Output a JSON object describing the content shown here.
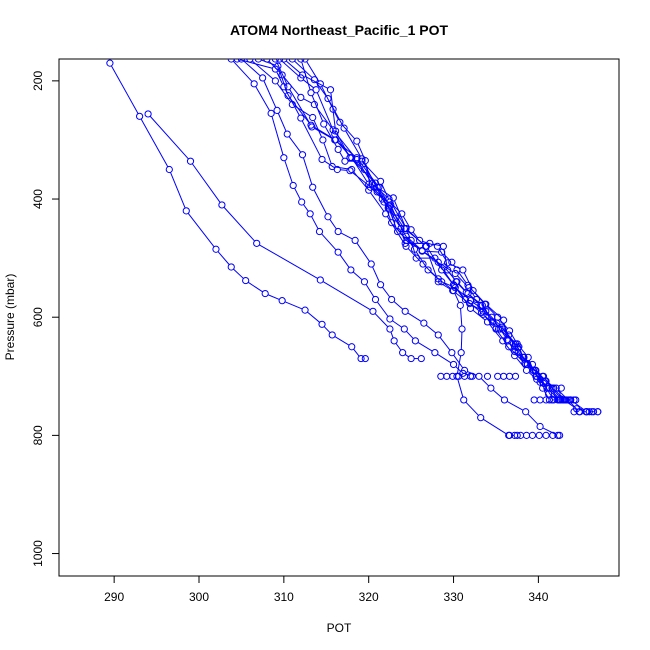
{
  "chart_data": {
    "type": "line",
    "title": "ATOM4 Northeast_Pacific_1 POT",
    "xlabel": "POT",
    "ylabel": "Pressure (mbar)",
    "xlim": [
      283.5,
      349.5
    ],
    "ylim": [
      1038,
      163
    ],
    "y_reversed": true,
    "grid": false,
    "legend": "none",
    "x_ticks": [
      290,
      300,
      310,
      320,
      330,
      340
    ],
    "y_ticks": [
      200,
      400,
      600,
      800,
      1000
    ],
    "color": "#0000ff",
    "marker": "open-circle",
    "series": [
      {
        "points": [
          [
            289.5,
            170
          ],
          [
            293,
            260
          ],
          [
            296.5,
            350
          ],
          [
            298.5,
            420
          ],
          [
            302,
            485
          ],
          [
            303.8,
            515
          ],
          [
            305.5,
            538
          ],
          [
            307.8,
            560
          ],
          [
            309.8,
            572
          ],
          [
            312.5,
            588
          ],
          [
            314.5,
            612
          ],
          [
            315.7,
            630
          ],
          [
            318,
            650
          ],
          [
            319.1,
            670
          ],
          [
            319.6,
            670
          ]
        ]
      },
      {
        "points": [
          [
            294,
            256
          ],
          [
            299,
            336
          ],
          [
            302.7,
            410
          ],
          [
            306.8,
            475
          ],
          [
            314.3,
            537
          ],
          [
            320.5,
            590
          ],
          [
            322.5,
            620
          ],
          [
            323,
            640
          ],
          [
            324,
            660
          ],
          [
            325,
            670
          ],
          [
            326.2,
            670
          ]
        ]
      },
      {
        "points": [
          [
            303.8,
            163
          ],
          [
            306.5,
            205
          ],
          [
            308.5,
            255
          ],
          [
            310,
            330
          ],
          [
            311.1,
            377
          ],
          [
            312.1,
            405
          ],
          [
            313.1,
            425
          ],
          [
            314.2,
            455
          ],
          [
            316.4,
            490
          ],
          [
            317.9,
            520
          ],
          [
            319.5,
            540
          ],
          [
            320.8,
            570
          ],
          [
            322.5,
            603
          ],
          [
            324.2,
            620
          ],
          [
            325.5,
            640
          ],
          [
            327.8,
            660
          ],
          [
            330,
            680
          ],
          [
            331.1,
            695
          ],
          [
            332.2,
            700
          ]
        ]
      },
      {
        "points": [
          [
            304.5,
            163
          ],
          [
            309,
            180
          ],
          [
            310,
            210
          ],
          [
            312,
            263
          ],
          [
            314.5,
            333
          ],
          [
            316.3,
            350
          ],
          [
            317.8,
            352
          ],
          [
            321,
            388
          ],
          [
            323.2,
            432
          ],
          [
            324.4,
            463
          ],
          [
            326.3,
            487
          ],
          [
            328.2,
            507
          ],
          [
            330.2,
            526
          ],
          [
            331.8,
            550
          ],
          [
            332.7,
            570
          ],
          [
            333.3,
            592
          ],
          [
            335,
            620
          ],
          [
            336.5,
            650
          ],
          [
            338.5,
            680
          ],
          [
            340.5,
            700
          ],
          [
            341.8,
            720
          ],
          [
            343,
            740
          ],
          [
            344.5,
            755
          ],
          [
            345.7,
            760
          ],
          [
            347,
            760
          ]
        ]
      },
      {
        "points": [
          [
            305,
            163
          ],
          [
            307.5,
            195
          ],
          [
            309.2,
            250
          ],
          [
            310.4,
            290
          ],
          [
            312.2,
            325
          ],
          [
            313.4,
            380
          ],
          [
            315.2,
            430
          ],
          [
            316.4,
            455
          ],
          [
            318.4,
            470
          ],
          [
            320.3,
            510
          ],
          [
            321.4,
            545
          ],
          [
            322.7,
            570
          ],
          [
            324.3,
            590
          ],
          [
            326.5,
            610
          ],
          [
            328.2,
            630
          ],
          [
            329.8,
            660
          ],
          [
            331.3,
            690
          ],
          [
            333,
            700
          ],
          [
            334.4,
            720
          ],
          [
            336,
            740
          ],
          [
            338.5,
            760
          ],
          [
            340.2,
            785
          ],
          [
            342.3,
            800
          ]
        ]
      },
      {
        "points": [
          [
            306,
            163
          ],
          [
            309,
            200
          ],
          [
            311,
            240
          ],
          [
            313.4,
            262
          ],
          [
            314.6,
            300
          ],
          [
            315.7,
            345
          ],
          [
            318,
            350
          ],
          [
            320,
            385
          ],
          [
            322,
            425
          ],
          [
            324.4,
            480
          ],
          [
            326.4,
            510
          ],
          [
            328.2,
            535
          ],
          [
            330,
            555
          ],
          [
            330.8,
            580
          ],
          [
            331,
            620
          ],
          [
            330.9,
            660
          ],
          [
            330.4,
            700
          ],
          [
            331.2,
            740
          ],
          [
            333.2,
            770
          ],
          [
            336.5,
            800
          ],
          [
            337.5,
            800
          ]
        ]
      },
      {
        "points": [
          [
            307,
            163
          ],
          [
            309.3,
            175
          ],
          [
            310.5,
            225
          ],
          [
            313.2,
            275
          ],
          [
            316.1,
            300
          ],
          [
            318,
            330
          ],
          [
            320,
            375
          ],
          [
            322.6,
            410
          ],
          [
            323.8,
            450
          ],
          [
            325.4,
            485
          ],
          [
            327,
            520
          ],
          [
            328.6,
            540
          ],
          [
            330.2,
            550
          ],
          [
            332,
            572
          ],
          [
            333.8,
            590
          ],
          [
            335.7,
            617
          ],
          [
            337.3,
            645
          ],
          [
            338.3,
            668
          ],
          [
            339.6,
            690
          ],
          [
            340.8,
            708
          ],
          [
            342.1,
            720
          ],
          [
            343.5,
            740
          ],
          [
            344.8,
            760
          ],
          [
            346,
            760
          ]
        ]
      },
      {
        "points": [
          [
            308,
            163
          ],
          [
            309.8,
            190
          ],
          [
            312,
            228
          ],
          [
            313.6,
            240
          ],
          [
            315.8,
            283
          ],
          [
            318.6,
            333
          ],
          [
            320.4,
            374
          ],
          [
            322.4,
            400
          ],
          [
            324.4,
            450
          ],
          [
            325,
            470
          ],
          [
            325.6,
            500
          ],
          [
            327.8,
            500
          ],
          [
            330,
            545
          ],
          [
            332,
            585
          ],
          [
            334,
            608
          ],
          [
            335.8,
            640
          ],
          [
            337.2,
            665
          ],
          [
            338.6,
            690
          ],
          [
            339.8,
            705
          ],
          [
            341.3,
            720
          ],
          [
            342.6,
            740
          ],
          [
            343.8,
            740
          ]
        ]
      },
      {
        "points": [
          [
            309,
            163
          ],
          [
            310.5,
            210
          ],
          [
            313.3,
            278
          ],
          [
            316,
            300
          ],
          [
            318.6,
            330
          ],
          [
            321.2,
            380
          ],
          [
            322.4,
            412
          ],
          [
            324.2,
            450
          ],
          [
            326.8,
            480
          ],
          [
            328.6,
            520
          ],
          [
            330.1,
            547
          ],
          [
            331.4,
            570
          ],
          [
            333.5,
            595
          ],
          [
            335.3,
            620
          ],
          [
            337.5,
            645
          ],
          [
            338.8,
            668
          ],
          [
            339.4,
            690
          ],
          [
            340.6,
            712
          ],
          [
            341.8,
            740
          ],
          [
            342.4,
            740
          ]
        ]
      },
      {
        "points": [
          [
            309.5,
            163
          ],
          [
            312,
            195
          ],
          [
            313.8,
            215
          ],
          [
            316,
            290
          ],
          [
            317.8,
            330
          ],
          [
            319.5,
            350
          ],
          [
            321,
            380
          ],
          [
            322.9,
            398
          ],
          [
            324.4,
            450
          ],
          [
            326.7,
            480
          ],
          [
            328.2,
            540
          ],
          [
            329.9,
            555
          ],
          [
            331.9,
            577
          ],
          [
            333.5,
            590
          ],
          [
            335.1,
            610
          ],
          [
            336.5,
            630
          ],
          [
            337.2,
            650
          ],
          [
            338.7,
            680
          ],
          [
            339.7,
            700
          ],
          [
            340.5,
            720
          ],
          [
            341.3,
            740
          ],
          [
            343.2,
            740
          ]
        ]
      },
      {
        "points": [
          [
            310,
            163
          ],
          [
            312.2,
            190
          ],
          [
            315.5,
            215
          ],
          [
            316.1,
            285
          ],
          [
            317.8,
            330
          ],
          [
            320.8,
            373
          ],
          [
            322.3,
            415
          ],
          [
            323.8,
            450
          ],
          [
            324.3,
            475
          ],
          [
            327.2,
            475
          ],
          [
            328.8,
            480
          ],
          [
            329.3,
            520
          ],
          [
            330.3,
            540
          ],
          [
            331.5,
            558
          ],
          [
            333.2,
            580
          ],
          [
            334.5,
            600
          ],
          [
            335.5,
            620
          ],
          [
            336.4,
            640
          ],
          [
            337.6,
            660
          ],
          [
            338.4,
            678
          ],
          [
            339.4,
            690
          ],
          [
            340.2,
            710
          ],
          [
            341.2,
            730
          ],
          [
            342.5,
            740
          ],
          [
            344.2,
            740
          ]
        ]
      },
      {
        "points": [
          [
            311,
            163
          ],
          [
            313.6,
            198
          ],
          [
            315.2,
            230
          ],
          [
            317.1,
            280
          ],
          [
            319.2,
            332
          ],
          [
            321.8,
            405
          ],
          [
            322.7,
            440
          ],
          [
            324.5,
            470
          ],
          [
            326.3,
            488
          ],
          [
            328.6,
            490
          ],
          [
            329.8,
            507
          ],
          [
            330.4,
            520
          ],
          [
            331.7,
            546
          ],
          [
            333.7,
            578
          ],
          [
            335.2,
            600
          ],
          [
            336.6,
            623
          ],
          [
            337.7,
            650
          ],
          [
            338.2,
            668
          ],
          [
            339.4,
            690
          ],
          [
            339.8,
            700
          ],
          [
            341,
            720
          ],
          [
            342.5,
            740
          ],
          [
            343.3,
            740
          ]
        ]
      },
      {
        "points": [
          [
            312,
            163
          ],
          [
            313.2,
            220
          ],
          [
            314.7,
            273
          ],
          [
            316.4,
            316
          ],
          [
            317.2,
            336
          ],
          [
            319.2,
            336
          ],
          [
            321.4,
            370
          ],
          [
            322.5,
            405
          ],
          [
            323.9,
            425
          ],
          [
            325,
            452
          ],
          [
            326,
            470
          ],
          [
            328.1,
            480
          ],
          [
            329.3,
            508
          ],
          [
            331.1,
            520
          ],
          [
            332.3,
            555
          ],
          [
            333.8,
            578
          ],
          [
            335.9,
            605
          ],
          [
            336.3,
            638
          ],
          [
            337.2,
            658
          ],
          [
            339.3,
            680
          ],
          [
            339.7,
            690
          ],
          [
            340.9,
            708
          ],
          [
            342.2,
            730
          ],
          [
            343.8,
            740
          ],
          [
            345.7,
            760
          ],
          [
            346.5,
            760
          ]
        ]
      },
      {
        "points": [
          [
            312.5,
            163
          ],
          [
            314.3,
            205
          ],
          [
            315.8,
            248
          ],
          [
            316.6,
            270
          ],
          [
            318.6,
            302
          ],
          [
            319.6,
            335
          ],
          [
            320.2,
            380
          ],
          [
            321.6,
            400
          ],
          [
            322.4,
            417
          ],
          [
            323.4,
            455
          ],
          [
            326.3,
            488
          ],
          [
            328.9,
            515
          ],
          [
            330.4,
            540
          ],
          [
            331.7,
            560
          ],
          [
            333.4,
            580
          ],
          [
            334.6,
            608
          ],
          [
            335.8,
            620
          ],
          [
            337.6,
            652
          ],
          [
            338.7,
            680
          ],
          [
            340.6,
            700
          ],
          [
            341.6,
            720
          ],
          [
            342.8,
            740
          ]
        ]
      }
    ],
    "clusters": [
      {
        "y": 700,
        "x": [
          328.5,
          329.2,
          329.9,
          330.6,
          331.3,
          332,
          334,
          335.2,
          335.9,
          336.6,
          337.3
        ]
      },
      {
        "y": 720,
        "x": [
          341.8,
          342.7
        ]
      },
      {
        "y": 740,
        "x": [
          339.5,
          340.2,
          340.9,
          341.6,
          342.3,
          343,
          343.7,
          344.4
        ]
      },
      {
        "y": 760,
        "x": [
          344.2,
          344.9,
          345.6,
          346.3,
          347
        ]
      },
      {
        "y": 800,
        "x": [
          336.6,
          337.2,
          337.9,
          338.6,
          339.3,
          340.1,
          340.9,
          341.7,
          342.5
        ]
      }
    ]
  }
}
